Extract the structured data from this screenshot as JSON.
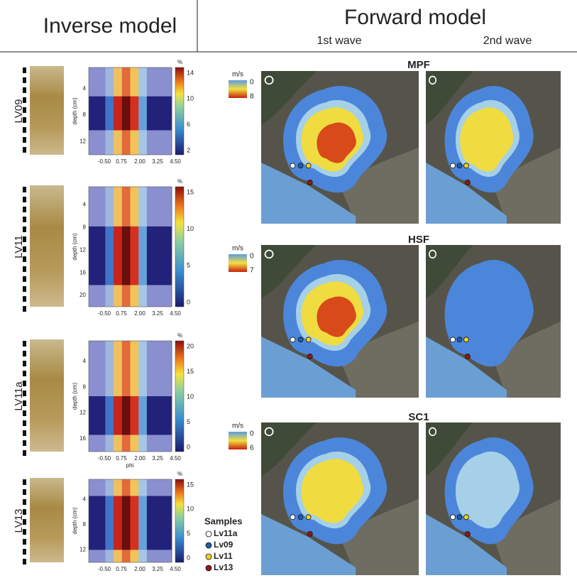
{
  "header": {
    "inverse_title": "Inverse model",
    "forward_title": "Forward model",
    "waves": [
      "1st wave",
      "2nd wave"
    ]
  },
  "inverse_panels": [
    {
      "label": "LV09",
      "y_axis_label": "depth (cm)",
      "yticks": [
        "4",
        "8",
        "12"
      ],
      "xticks": [
        "-0.50",
        "0.75",
        "2.00",
        "3.25",
        "4.50"
      ],
      "colorbar_unit": "%",
      "colorbar_ticks": [
        "14",
        "10",
        "6",
        "2"
      ]
    },
    {
      "label": "LV11",
      "y_axis_label": "depth (cm)",
      "yticks": [
        "4",
        "8",
        "12",
        "16",
        "20"
      ],
      "xticks": [
        "-0.50",
        "0.75",
        "2.00",
        "3.25",
        "4.50"
      ],
      "colorbar_unit": "%",
      "colorbar_ticks": [
        "15",
        "10",
        "5",
        "0"
      ]
    },
    {
      "label": "LV11a",
      "y_axis_label": "depth (cm)",
      "x_axis_label": "phi",
      "yticks": [
        "4",
        "8",
        "12",
        "16"
      ],
      "xticks": [
        "-0.50",
        "0.75",
        "2.00",
        "3.25",
        "4.50"
      ],
      "colorbar_unit": "%",
      "colorbar_ticks": [
        "20",
        "15",
        "10",
        "5",
        "0"
      ]
    },
    {
      "label": "LV13",
      "y_axis_label": "depth (cm)",
      "yticks": [
        "4",
        "8",
        "12"
      ],
      "xticks": [
        "-0.50",
        "0.75",
        "2.00",
        "3.25",
        "4.50"
      ],
      "colorbar_unit": "%",
      "colorbar_ticks": [
        "15",
        "10",
        "5",
        "0"
      ]
    }
  ],
  "forward_rows": [
    {
      "title": "MPF",
      "unit": "m/s",
      "scale_ticks": [
        "0",
        "8"
      ]
    },
    {
      "title": "HSF",
      "unit": "m/s",
      "scale_ticks": [
        "0",
        "7"
      ]
    },
    {
      "title": "SC1",
      "unit": "m/s",
      "scale_ticks": [
        "0",
        "6"
      ]
    }
  ],
  "legend": {
    "title": "Samples",
    "items": [
      {
        "label": "Lv11a",
        "color": "#ffffff"
      },
      {
        "label": "Lv09",
        "color": "#1f5fa8"
      },
      {
        "label": "Lv11",
        "color": "#f2d21a"
      },
      {
        "label": "Lv13",
        "color": "#8a1a1a"
      }
    ]
  }
}
